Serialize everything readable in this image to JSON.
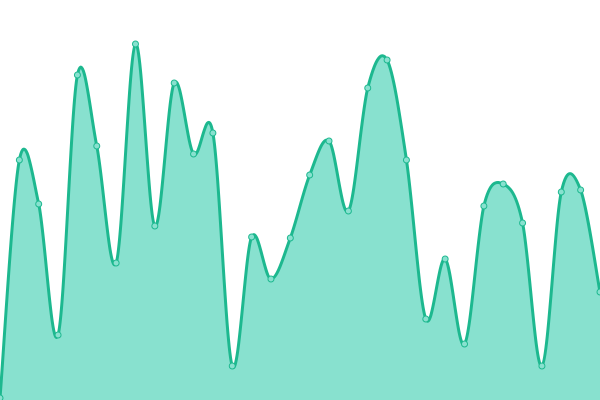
{
  "chart_data": {
    "type": "area",
    "values": [
      2,
      240,
      196,
      65,
      325,
      254,
      137,
      356,
      174,
      317,
      246,
      267,
      34,
      163,
      121,
      162,
      225,
      259,
      189,
      312,
      340,
      240,
      81,
      141,
      56,
      194,
      216,
      177,
      34,
      208,
      210,
      108
    ],
    "ylim": [
      0,
      400
    ],
    "color": "#1db88f",
    "fill": "#88e1cf",
    "grid": false
  }
}
